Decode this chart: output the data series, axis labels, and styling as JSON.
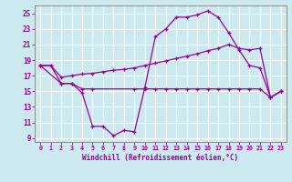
{
  "background_color": "#cce9f0",
  "grid_color": "#ffffff",
  "line_color": "#990099",
  "xlabel": "Windchill (Refroidissement éolien,°C)",
  "xlim": [
    -0.5,
    23.5
  ],
  "ylim": [
    8.5,
    26.0
  ],
  "xticks": [
    0,
    1,
    2,
    3,
    4,
    5,
    6,
    7,
    8,
    9,
    10,
    11,
    12,
    13,
    14,
    15,
    16,
    17,
    18,
    19,
    20,
    21,
    22,
    23
  ],
  "yticks": [
    9,
    11,
    13,
    15,
    17,
    19,
    21,
    23,
    25
  ],
  "line1_x": [
    0,
    1,
    2,
    3,
    4,
    5,
    6,
    7,
    8,
    9,
    10,
    11,
    12,
    13,
    14,
    15,
    16,
    17,
    18,
    19,
    20,
    21,
    22,
    23
  ],
  "line1_y": [
    18.3,
    18.3,
    16.0,
    16.0,
    14.8,
    10.5,
    10.5,
    9.3,
    10.0,
    9.8,
    15.5,
    22.0,
    23.0,
    24.5,
    24.5,
    24.8,
    25.3,
    24.5,
    22.5,
    20.3,
    18.3,
    18.0,
    14.2,
    15.0
  ],
  "line2_x": [
    0,
    2,
    3,
    4,
    5,
    9,
    10,
    11,
    12,
    13,
    14,
    15,
    16,
    17,
    18,
    19,
    20,
    21,
    22,
    23
  ],
  "line2_y": [
    18.3,
    16.0,
    16.0,
    15.3,
    15.3,
    15.3,
    15.3,
    15.3,
    15.3,
    15.3,
    15.3,
    15.3,
    15.3,
    15.3,
    15.3,
    15.3,
    15.3,
    15.3,
    14.2,
    15.0
  ],
  "line3_x": [
    0,
    1,
    2,
    3,
    4,
    5,
    6,
    7,
    8,
    9,
    10,
    11,
    12,
    13,
    14,
    15,
    16,
    17,
    18,
    19,
    20,
    21,
    22,
    23
  ],
  "line3_y": [
    18.3,
    18.3,
    16.8,
    17.0,
    17.2,
    17.3,
    17.5,
    17.7,
    17.8,
    18.0,
    18.3,
    18.6,
    18.9,
    19.2,
    19.5,
    19.8,
    20.2,
    20.5,
    21.0,
    20.5,
    20.3,
    20.5,
    14.2,
    15.0
  ]
}
